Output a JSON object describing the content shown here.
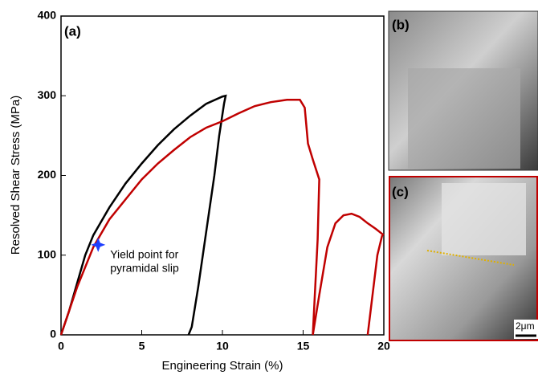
{
  "chart_data": {
    "type": "line",
    "xlabel": "Engineering Strain (%)",
    "ylabel": "Resolved Shear Stress (MPa)",
    "panel_labels": [
      "(a)",
      "(b)",
      "(c)"
    ],
    "scale_bar": "2μm",
    "xlim": [
      0,
      20
    ],
    "xticks": [
      0,
      5,
      10,
      15,
      20
    ],
    "ylim": [
      0,
      400
    ],
    "yticks": [
      0,
      100,
      200,
      300,
      400
    ],
    "grid": false,
    "series": [
      {
        "color": "#000000",
        "x": [
          0,
          0.5,
          1,
          1.5,
          2,
          3,
          4,
          5,
          6,
          7,
          8,
          9,
          10,
          10.2,
          10.1,
          9.8,
          9.5,
          9.0,
          8.5,
          8.1,
          7.9
        ],
        "values": [
          0,
          30,
          65,
          100,
          125,
          160,
          190,
          215,
          238,
          258,
          275,
          290,
          299,
          300,
          290,
          250,
          200,
          130,
          60,
          10,
          0
        ]
      },
      {
        "color": "#c00000",
        "x": [
          0,
          0.5,
          1,
          2,
          3,
          4,
          5,
          6,
          7,
          8,
          9,
          10,
          11,
          12,
          13,
          14,
          14.8,
          15.1,
          15.3,
          15.6,
          16,
          15.9,
          15.7,
          15.6,
          null,
          15.6,
          16,
          16.5,
          17,
          17.5,
          18,
          18.5,
          19,
          19.5,
          20,
          null,
          19.0,
          19.3,
          19.6,
          19.9
        ],
        "values": [
          0,
          30,
          60,
          110,
          145,
          170,
          195,
          215,
          232,
          248,
          260,
          268,
          278,
          287,
          292,
          295,
          295,
          285,
          240,
          220,
          195,
          120,
          40,
          0,
          null,
          0,
          50,
          110,
          140,
          150,
          152,
          148,
          140,
          133,
          125,
          null,
          0,
          50,
          100,
          125
        ]
      }
    ],
    "annotation": {
      "x": 2.3,
      "y": 113,
      "color": "#1f3fff",
      "lines": [
        "Yield point for",
        "pyramidal slip"
      ]
    }
  }
}
